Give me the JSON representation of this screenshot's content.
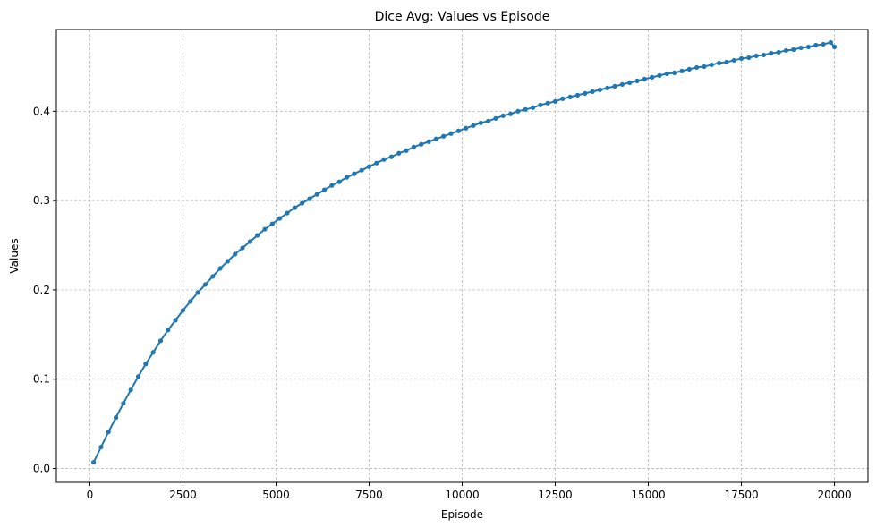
{
  "chart_data": {
    "type": "line",
    "title": "Dice Avg: Values vs Episode",
    "xlabel": "Episode",
    "ylabel": "Values",
    "xlim": [
      -900,
      20900
    ],
    "ylim": [
      -0.0155,
      0.4915
    ],
    "grid": true,
    "xticks": [
      0,
      2500,
      5000,
      7500,
      10000,
      12500,
      15000,
      17500,
      20000
    ],
    "yticks": [
      0.0,
      0.1,
      0.2,
      0.3,
      0.4
    ],
    "ytick_labels": [
      "0.0",
      "0.1",
      "0.2",
      "0.3",
      "0.4"
    ],
    "series": [
      {
        "color": "#1f77b4",
        "marker": "circle",
        "x": [
          100,
          300,
          500,
          700,
          900,
          1100,
          1300,
          1500,
          1700,
          1900,
          2100,
          2300,
          2500,
          2700,
          2900,
          3100,
          3300,
          3500,
          3700,
          3900,
          4100,
          4300,
          4500,
          4700,
          4900,
          5100,
          5300,
          5500,
          5700,
          5900,
          6100,
          6300,
          6500,
          6700,
          6900,
          7100,
          7300,
          7500,
          7700,
          7900,
          8100,
          8300,
          8500,
          8700,
          8900,
          9100,
          9300,
          9500,
          9700,
          9900,
          10100,
          10300,
          10500,
          10700,
          10900,
          11100,
          11300,
          11500,
          11700,
          11900,
          12100,
          12300,
          12500,
          12700,
          12900,
          13100,
          13300,
          13500,
          13700,
          13900,
          14100,
          14300,
          14500,
          14700,
          14900,
          15100,
          15300,
          15500,
          15700,
          15900,
          16100,
          16300,
          16500,
          16700,
          16900,
          17100,
          17300,
          17500,
          17700,
          17900,
          18100,
          18300,
          18500,
          18700,
          18900,
          19100,
          19300,
          19500,
          19700,
          19900,
          20000
        ],
        "y": [
          0.007,
          0.024,
          0.041,
          0.057,
          0.073,
          0.088,
          0.103,
          0.117,
          0.13,
          0.143,
          0.155,
          0.166,
          0.177,
          0.187,
          0.197,
          0.206,
          0.215,
          0.224,
          0.232,
          0.24,
          0.247,
          0.254,
          0.261,
          0.268,
          0.274,
          0.28,
          0.286,
          0.292,
          0.297,
          0.302,
          0.307,
          0.312,
          0.317,
          0.321,
          0.326,
          0.33,
          0.334,
          0.338,
          0.342,
          0.346,
          0.349,
          0.353,
          0.356,
          0.36,
          0.363,
          0.366,
          0.369,
          0.372,
          0.375,
          0.378,
          0.381,
          0.384,
          0.387,
          0.389,
          0.392,
          0.395,
          0.397,
          0.4,
          0.402,
          0.404,
          0.407,
          0.409,
          0.411,
          0.414,
          0.416,
          0.418,
          0.42,
          0.422,
          0.424,
          0.426,
          0.428,
          0.43,
          0.432,
          0.434,
          0.436,
          0.438,
          0.44,
          0.442,
          0.443,
          0.445,
          0.447,
          0.449,
          0.45,
          0.452,
          0.454,
          0.455,
          0.457,
          0.459,
          0.46,
          0.462,
          0.463,
          0.465,
          0.466,
          0.468,
          0.469,
          0.471,
          0.472,
          0.474,
          0.475,
          0.477,
          0.472
        ]
      }
    ]
  }
}
